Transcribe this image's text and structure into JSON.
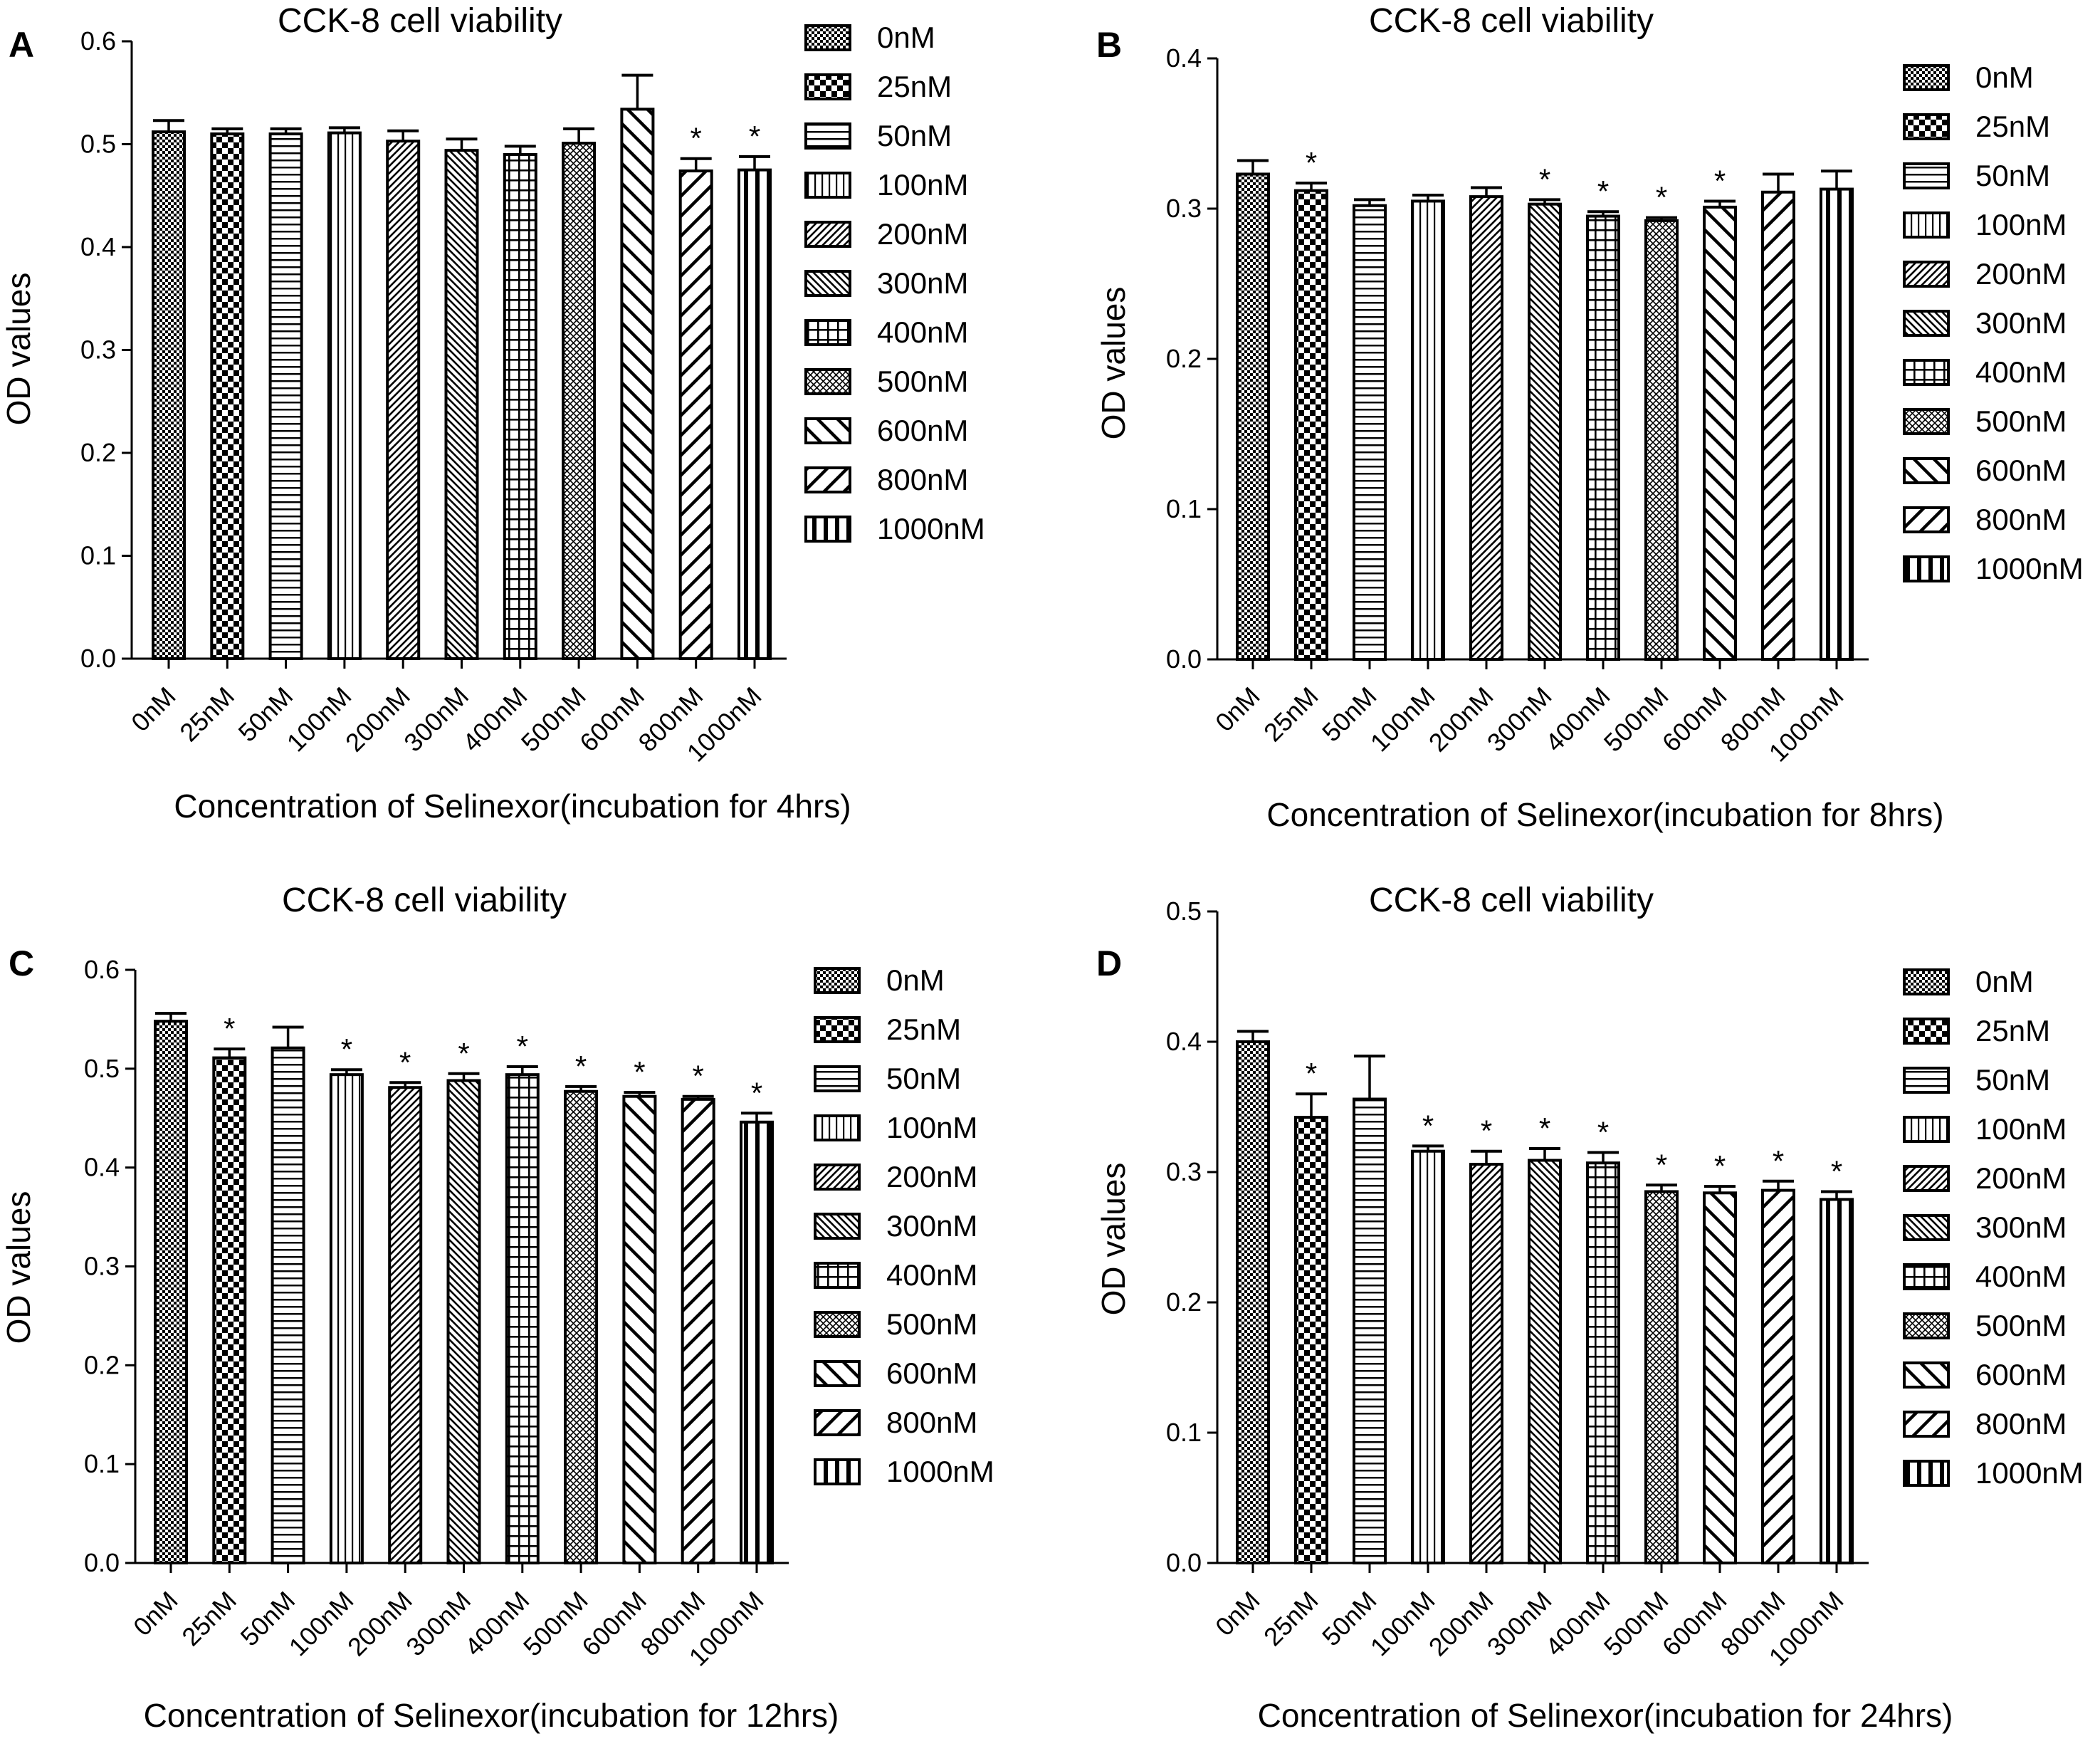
{
  "colors": {
    "ink": "#000000",
    "paper": "#ffffff"
  },
  "pattern_order": [
    "checker-fine",
    "checker-coarse",
    "h-lines",
    "v-lines",
    "diag-fwd-dense",
    "diag-back-dense",
    "grid",
    "crosshatch-fine",
    "diag-back-wide",
    "diag-fwd-wide",
    "v-bars-thick"
  ],
  "chart_data": [
    {
      "panel": "A",
      "type": "bar",
      "title": "CCK-8 cell viability",
      "ylabel": "OD values",
      "xlabel": "Concentration of Selinexor(incubation for 4hrs)",
      "ylim": [
        0,
        0.6
      ],
      "yticks": [
        "0.0",
        "0.1",
        "0.2",
        "0.3",
        "0.4",
        "0.5",
        "0.6"
      ],
      "categories": [
        "0nM",
        "25nM",
        "50nM",
        "100nM",
        "200nM",
        "300nM",
        "400nM",
        "500nM",
        "600nM",
        "800nM",
        "1000nM"
      ],
      "values": [
        0.512,
        0.51,
        0.51,
        0.511,
        0.503,
        0.494,
        0.49,
        0.501,
        0.534,
        0.474,
        0.475
      ],
      "errors": [
        0.011,
        0.005,
        0.005,
        0.005,
        0.01,
        0.011,
        0.008,
        0.014,
        0.033,
        0.012,
        0.013
      ],
      "stars": [
        "",
        "",
        "",
        "",
        "",
        "",
        "",
        "",
        "",
        "*",
        "*"
      ],
      "legend": [
        "0nM",
        "25nM",
        "50nM",
        "100nM",
        "200nM",
        "300nM",
        "400nM",
        "500nM",
        "600nM",
        "800nM",
        "1000nM"
      ]
    },
    {
      "panel": "B",
      "type": "bar",
      "title": "CCK-8 cell viability",
      "ylabel": "OD values",
      "xlabel": "Concentration of Selinexor(incubation for 8hrs)",
      "ylim": [
        0,
        0.4
      ],
      "yticks": [
        "0.0",
        "0.1",
        "0.2",
        "0.3",
        "0.4"
      ],
      "categories": [
        "0nM",
        "25nM",
        "50nM",
        "100nM",
        "200nM",
        "300nM",
        "400nM",
        "500nM",
        "600nM",
        "800nM",
        "1000nM"
      ],
      "values": [
        0.323,
        0.312,
        0.302,
        0.305,
        0.308,
        0.303,
        0.295,
        0.292,
        0.301,
        0.311,
        0.313
      ],
      "errors": [
        0.009,
        0.005,
        0.004,
        0.004,
        0.006,
        0.003,
        0.003,
        0.002,
        0.004,
        0.012,
        0.012
      ],
      "stars": [
        "",
        "*",
        "",
        "",
        "",
        "*",
        "*",
        "*",
        "*",
        "",
        ""
      ],
      "legend": [
        "0nM",
        "25nM",
        "50nM",
        "100nM",
        "200nM",
        "300nM",
        "400nM",
        "500nM",
        "600nM",
        "800nM",
        "1000nM"
      ]
    },
    {
      "panel": "C",
      "type": "bar",
      "title": "CCK-8 cell viability",
      "ylabel": "OD values",
      "xlabel": "Concentration of Selinexor(incubation for 12hrs)",
      "ylim": [
        0,
        0.6
      ],
      "yticks": [
        "0.0",
        "0.1",
        "0.2",
        "0.3",
        "0.4",
        "0.5",
        "0.6"
      ],
      "categories": [
        "0nM",
        "25nM",
        "50nM",
        "100nM",
        "200nM",
        "300nM",
        "400nM",
        "500nM",
        "600nM",
        "800nM",
        "1000nM"
      ],
      "values": [
        0.548,
        0.511,
        0.521,
        0.494,
        0.481,
        0.488,
        0.494,
        0.477,
        0.472,
        0.469,
        0.446
      ],
      "errors": [
        0.008,
        0.009,
        0.021,
        0.005,
        0.005,
        0.007,
        0.008,
        0.005,
        0.004,
        0.003,
        0.009
      ],
      "stars": [
        "",
        "*",
        "",
        "*",
        "*",
        "*",
        "*",
        "*",
        "*",
        "*",
        "*"
      ],
      "legend": [
        "0nM",
        "25nM",
        "50nM",
        "100nM",
        "200nM",
        "300nM",
        "400nM",
        "500nM",
        "600nM",
        "800nM",
        "1000nM"
      ]
    },
    {
      "panel": "D",
      "type": "bar",
      "title": "CCK-8 cell viability",
      "ylabel": "OD values",
      "xlabel": "Concentration of Selinexor(incubation for 24hrs)",
      "ylim": [
        0,
        0.5
      ],
      "yticks": [
        "0.0",
        "0.1",
        "0.2",
        "0.3",
        "0.4",
        "0.5"
      ],
      "categories": [
        "0nM",
        "25nM",
        "50nM",
        "100nM",
        "200nM",
        "300nM",
        "400nM",
        "500nM",
        "600nM",
        "800nM",
        "1000nM"
      ],
      "values": [
        0.4,
        0.342,
        0.356,
        0.316,
        0.306,
        0.309,
        0.307,
        0.285,
        0.284,
        0.286,
        0.279
      ],
      "errors": [
        0.008,
        0.018,
        0.033,
        0.004,
        0.01,
        0.009,
        0.008,
        0.005,
        0.005,
        0.007,
        0.006
      ],
      "stars": [
        "",
        "*",
        "",
        "*",
        "*",
        "*",
        "*",
        "*",
        "*",
        "*",
        "*"
      ],
      "legend": [
        "0nM",
        "25nM",
        "50nM",
        "100nM",
        "200nM",
        "300nM",
        "400nM",
        "500nM",
        "600nM",
        "800nM",
        "1000nM"
      ]
    }
  ]
}
